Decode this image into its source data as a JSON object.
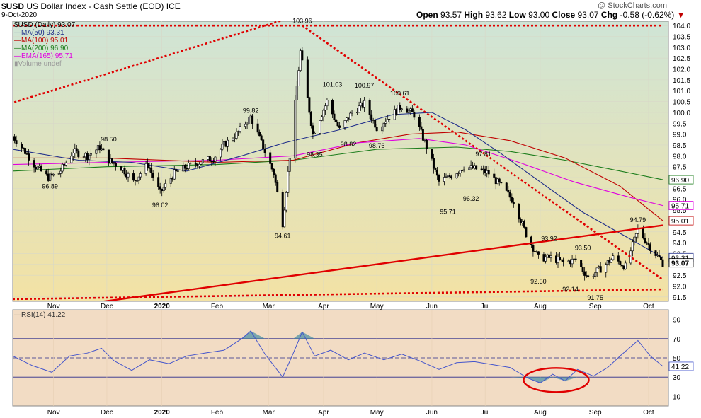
{
  "header": {
    "symbol": "$USD",
    "description": "US Dollar Index - Cash Settle (EOD)",
    "exchange": "ICE",
    "date": "9-Oct-2020",
    "open_label": "Open",
    "open": "93.57",
    "high_label": "High",
    "high": "93.62",
    "low_label": "Low",
    "low": "93.00",
    "close_label": "Close",
    "close": "93.07",
    "chg_label": "Chg",
    "chg": "-0.58 (-0.62%)",
    "watermark": "@ StockCharts.com"
  },
  "legend": {
    "price": "$USD (Daily) 93.07",
    "ma50": "MA(50) 93.31",
    "ma100": "MA(100) 95.01",
    "ma200": "MA(200) 96.90",
    "ema165": "EMA(165) 95.71",
    "volume": "Volume undef",
    "rsi": "RSI(14) 41.22"
  },
  "colors": {
    "price_bg_top": "#cfe4d6",
    "price_bg_bottom": "#f3e2a4",
    "rsi_bg": "#f2dcc4",
    "candle": "#000000",
    "ma50": "#1f2d8a",
    "ma100": "#c00000",
    "ma200": "#1c7d1c",
    "ema165": "#e000e0",
    "trend": "#e00000",
    "rsi_line": "#4455cc",
    "rsi_fill": "#5a97a7"
  },
  "chart_data": {
    "type": "line",
    "x_tick_labels": [
      "Nov",
      "Dec",
      "2020",
      "Feb",
      "Mar",
      "Apr",
      "May",
      "Jun",
      "Jul",
      "Aug",
      "Sep",
      "Oct"
    ],
    "x_tick_dates": [
      "2019-11-01",
      "2019-12-01",
      "2020-01-01",
      "2020-02-01",
      "2020-03-01",
      "2020-04-01",
      "2020-05-01",
      "2020-06-01",
      "2020-07-01",
      "2020-08-01",
      "2020-09-01",
      "2020-10-01"
    ],
    "x_range": [
      "2019-10-09",
      "2020-10-09"
    ],
    "price_panel": {
      "y_ticks": [
        91.5,
        92.0,
        92.5,
        93.0,
        93.5,
        94.0,
        94.5,
        95.0,
        95.5,
        96.0,
        96.5,
        97.0,
        97.5,
        98.0,
        98.5,
        99.0,
        99.5,
        100.0,
        100.5,
        101.0,
        101.5,
        102.0,
        102.5,
        103.0,
        103.5,
        104.0
      ],
      "ylim": [
        91.3,
        104.2
      ],
      "close_path": [
        [
          "2019-10-09",
          98.9
        ],
        [
          "2019-10-15",
          98.3
        ],
        [
          "2019-10-22",
          97.5
        ],
        [
          "2019-10-29",
          97.0
        ],
        [
          "2019-11-04",
          97.2
        ],
        [
          "2019-11-12",
          98.2
        ],
        [
          "2019-11-20",
          98.0
        ],
        [
          "2019-11-27",
          98.4
        ],
        [
          "2019-12-02",
          97.8
        ],
        [
          "2019-12-10",
          97.4
        ],
        [
          "2019-12-16",
          96.8
        ],
        [
          "2019-12-24",
          97.6
        ],
        [
          "2019-12-31",
          96.3
        ],
        [
          "2020-01-08",
          97.2
        ],
        [
          "2020-01-15",
          97.5
        ],
        [
          "2020-01-22",
          97.7
        ],
        [
          "2020-01-30",
          97.9
        ],
        [
          "2020-02-05",
          98.5
        ],
        [
          "2020-02-12",
          99.0
        ],
        [
          "2020-02-20",
          99.8
        ],
        [
          "2020-02-27",
          98.4
        ],
        [
          "2020-03-04",
          97.2
        ],
        [
          "2020-03-09",
          94.9
        ],
        [
          "2020-03-13",
          98.0
        ],
        [
          "2020-03-19",
          102.8
        ],
        [
          "2020-03-26",
          99.0
        ],
        [
          "2020-04-03",
          100.5
        ],
        [
          "2020-04-10",
          99.2
        ],
        [
          "2020-04-17",
          100.0
        ],
        [
          "2020-04-24",
          100.4
        ],
        [
          "2020-05-01",
          99.3
        ],
        [
          "2020-05-08",
          99.8
        ],
        [
          "2020-05-15",
          100.3
        ],
        [
          "2020-05-22",
          99.9
        ],
        [
          "2020-05-29",
          98.4
        ],
        [
          "2020-06-05",
          96.8
        ],
        [
          "2020-06-12",
          97.1
        ],
        [
          "2020-06-19",
          97.5
        ],
        [
          "2020-06-26",
          97.4
        ],
        [
          "2020-07-03",
          97.2
        ],
        [
          "2020-07-10",
          96.6
        ],
        [
          "2020-07-17",
          95.9
        ],
        [
          "2020-07-24",
          94.4
        ],
        [
          "2020-07-31",
          93.3
        ],
        [
          "2020-08-07",
          93.3
        ],
        [
          "2020-08-14",
          93.1
        ],
        [
          "2020-08-21",
          93.2
        ],
        [
          "2020-08-28",
          92.4
        ],
        [
          "2020-09-04",
          92.8
        ],
        [
          "2020-09-11",
          93.3
        ],
        [
          "2020-09-18",
          92.9
        ],
        [
          "2020-09-25",
          94.6
        ],
        [
          "2020-10-02",
          93.8
        ],
        [
          "2020-10-09",
          93.07
        ]
      ],
      "ma50": [
        [
          "2019-10-09",
          98.3
        ],
        [
          "2019-11-15",
          97.8
        ],
        [
          "2019-12-15",
          97.7
        ],
        [
          "2020-01-15",
          97.3
        ],
        [
          "2020-02-15",
          98.0
        ],
        [
          "2020-03-10",
          98.6
        ],
        [
          "2020-04-10",
          99.2
        ],
        [
          "2020-05-10",
          99.9
        ],
        [
          "2020-06-01",
          100.0
        ],
        [
          "2020-06-20",
          99.2
        ],
        [
          "2020-07-10",
          98.1
        ],
        [
          "2020-08-01",
          96.8
        ],
        [
          "2020-08-25",
          95.4
        ],
        [
          "2020-09-20",
          94.2
        ],
        [
          "2020-10-09",
          93.31
        ]
      ],
      "ma100": [
        [
          "2019-10-09",
          97.9
        ],
        [
          "2019-12-01",
          97.9
        ],
        [
          "2020-02-01",
          97.7
        ],
        [
          "2020-03-15",
          97.8
        ],
        [
          "2020-04-20",
          98.6
        ],
        [
          "2020-05-20",
          99.0
        ],
        [
          "2020-06-15",
          99.1
        ],
        [
          "2020-07-15",
          98.7
        ],
        [
          "2020-08-15",
          97.9
        ],
        [
          "2020-09-15",
          96.6
        ],
        [
          "2020-10-09",
          95.01
        ]
      ],
      "ma200": [
        [
          "2019-10-09",
          97.3
        ],
        [
          "2019-12-01",
          97.5
        ],
        [
          "2020-02-01",
          97.6
        ],
        [
          "2020-03-15",
          97.8
        ],
        [
          "2020-05-01",
          98.3
        ],
        [
          "2020-06-15",
          98.4
        ],
        [
          "2020-07-15",
          98.2
        ],
        [
          "2020-08-15",
          97.8
        ],
        [
          "2020-09-15",
          97.3
        ],
        [
          "2020-10-09",
          96.9
        ]
      ],
      "ema165": [
        [
          "2019-10-09",
          97.6
        ],
        [
          "2019-12-01",
          97.7
        ],
        [
          "2020-02-01",
          97.8
        ],
        [
          "2020-03-15",
          98.0
        ],
        [
          "2020-04-20",
          98.6
        ],
        [
          "2020-05-25",
          98.8
        ],
        [
          "2020-06-20",
          98.5
        ],
        [
          "2020-07-20",
          97.7
        ],
        [
          "2020-08-20",
          96.8
        ],
        [
          "2020-09-20",
          96.1
        ],
        [
          "2020-10-09",
          95.71
        ]
      ],
      "price_annotations": [
        {
          "date": "2019-10-30",
          "value": 96.89,
          "text": "96.89"
        },
        {
          "date": "2019-12-02",
          "value": 98.5,
          "text": "98.50"
        },
        {
          "date": "2019-12-31",
          "value": 96.02,
          "text": "96.02"
        },
        {
          "date": "2020-02-20",
          "value": 99.82,
          "text": "99.82"
        },
        {
          "date": "2020-03-09",
          "value": 94.61,
          "text": "94.61"
        },
        {
          "date": "2020-03-20",
          "value": 103.96,
          "text": "103.96"
        },
        {
          "date": "2020-03-27",
          "value": 98.35,
          "text": "98.35"
        },
        {
          "date": "2020-04-06",
          "value": 101.03,
          "text": "101.03"
        },
        {
          "date": "2020-04-15",
          "value": 98.82,
          "text": "98.82"
        },
        {
          "date": "2020-04-24",
          "value": 100.97,
          "text": "100.97"
        },
        {
          "date": "2020-05-01",
          "value": 98.76,
          "text": "98.76"
        },
        {
          "date": "2020-05-14",
          "value": 100.61,
          "text": "100.61"
        },
        {
          "date": "2020-06-10",
          "value": 95.71,
          "text": "95.71"
        },
        {
          "date": "2020-06-23",
          "value": 96.32,
          "text": "96.32"
        },
        {
          "date": "2020-06-30",
          "value": 97.81,
          "text": "97.81"
        },
        {
          "date": "2020-07-31",
          "value": 92.5,
          "text": "92.50"
        },
        {
          "date": "2020-08-06",
          "value": 93.92,
          "text": "93.92"
        },
        {
          "date": "2020-08-18",
          "value": 92.14,
          "text": "92.14"
        },
        {
          "date": "2020-08-25",
          "value": 93.5,
          "text": "93.50"
        },
        {
          "date": "2020-09-01",
          "value": 91.75,
          "text": "91.75"
        },
        {
          "date": "2020-09-25",
          "value": 94.79,
          "text": "94.79"
        }
      ],
      "right_value_labels": [
        {
          "value": 96.9,
          "text": "96.90",
          "series": "ma200"
        },
        {
          "value": 95.71,
          "text": "95.71",
          "series": "ema165"
        },
        {
          "value": 95.01,
          "text": "95.01",
          "series": "ma100"
        },
        {
          "value": 93.31,
          "text": "93.31",
          "series": "ma50"
        },
        {
          "value": 93.07,
          "text": "93.07",
          "series": "price"
        }
      ],
      "trend_lines": [
        {
          "style": "dotted",
          "from": [
            "2019-09-01",
            99.5
          ],
          "to": [
            "2020-04-20",
            105.3
          ]
        },
        {
          "style": "dotted",
          "from": [
            "2019-10-09",
            104.0
          ],
          "to": [
            "2020-10-09",
            104.0
          ]
        },
        {
          "style": "dotted",
          "from": [
            "2020-03-20",
            104.0
          ],
          "to": [
            "2020-10-09",
            92.3
          ]
        },
        {
          "style": "dotted",
          "from": [
            "2019-10-09",
            91.4
          ],
          "to": [
            "2020-10-09",
            91.85
          ]
        },
        {
          "style": "solid",
          "from": [
            "2019-09-01",
            90.3
          ],
          "to": [
            "2020-10-09",
            94.8
          ]
        }
      ]
    },
    "rsi_panel": {
      "y_ticks": [
        10,
        30,
        50,
        70,
        90
      ],
      "ylim": [
        0,
        100
      ],
      "reference_lines": [
        30,
        50,
        70
      ],
      "values": [
        [
          "2019-10-09",
          52
        ],
        [
          "2019-10-20",
          42
        ],
        [
          "2019-10-31",
          35
        ],
        [
          "2019-11-10",
          52
        ],
        [
          "2019-11-20",
          55
        ],
        [
          "2019-11-28",
          60
        ],
        [
          "2019-12-05",
          47
        ],
        [
          "2019-12-15",
          37
        ],
        [
          "2019-12-25",
          48
        ],
        [
          "2020-01-05",
          44
        ],
        [
          "2020-01-15",
          52
        ],
        [
          "2020-01-25",
          55
        ],
        [
          "2020-02-05",
          58
        ],
        [
          "2020-02-15",
          70
        ],
        [
          "2020-02-20",
          78
        ],
        [
          "2020-02-28",
          54
        ],
        [
          "2020-03-09",
          30
        ],
        [
          "2020-03-15",
          55
        ],
        [
          "2020-03-20",
          77
        ],
        [
          "2020-03-27",
          52
        ],
        [
          "2020-04-05",
          58
        ],
        [
          "2020-04-15",
          48
        ],
        [
          "2020-04-24",
          55
        ],
        [
          "2020-05-05",
          48
        ],
        [
          "2020-05-15",
          54
        ],
        [
          "2020-05-25",
          47
        ],
        [
          "2020-06-05",
          38
        ],
        [
          "2020-06-15",
          45
        ],
        [
          "2020-06-25",
          46
        ],
        [
          "2020-07-05",
          43
        ],
        [
          "2020-07-15",
          40
        ],
        [
          "2020-07-25",
          29
        ],
        [
          "2020-08-01",
          24
        ],
        [
          "2020-08-08",
          33
        ],
        [
          "2020-08-15",
          26
        ],
        [
          "2020-08-22",
          38
        ],
        [
          "2020-08-31",
          31
        ],
        [
          "2020-09-08",
          40
        ],
        [
          "2020-09-15",
          52
        ],
        [
          "2020-09-25",
          68
        ],
        [
          "2020-10-02",
          52
        ],
        [
          "2020-10-09",
          41.22
        ]
      ],
      "right_value_label": "41.22"
    }
  }
}
